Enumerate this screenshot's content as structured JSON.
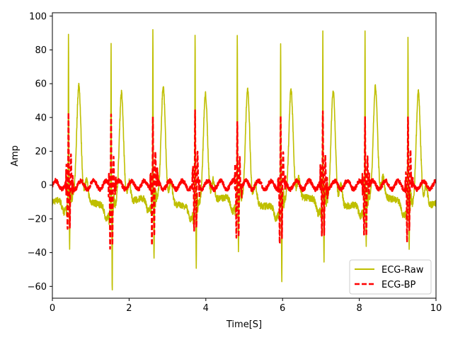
{
  "chart_data": {
    "type": "line",
    "xlabel": "Time[S]",
    "ylabel": "Amp",
    "xlim": [
      0,
      10
    ],
    "ylim": [
      -67,
      102
    ],
    "xticks": [
      0,
      2,
      4,
      6,
      8,
      10
    ],
    "yticks": [
      -60,
      -40,
      -20,
      0,
      20,
      40,
      60,
      80,
      100
    ],
    "ytick_labels": [
      "−60",
      "−40",
      "−20",
      "0",
      "20",
      "40",
      "60",
      "80",
      "100"
    ],
    "grid": false,
    "legend_position": "bottom-right",
    "beats": [
      {
        "r_time": 0.42,
        "raw_r": 87,
        "raw_s": -39,
        "raw_t": 57,
        "bp_r": 40,
        "bp_s": -30
      },
      {
        "r_time": 1.53,
        "raw_r": 86,
        "raw_s": -59,
        "raw_t": 56,
        "bp_r": 43,
        "bp_s": -38
      },
      {
        "r_time": 2.62,
        "raw_r": 90,
        "raw_s": -48,
        "raw_t": 57,
        "bp_r": 41,
        "bp_s": -35
      },
      {
        "r_time": 3.72,
        "raw_r": 93,
        "raw_s": -46,
        "raw_t": 54,
        "bp_r": 41,
        "bp_s": -30
      },
      {
        "r_time": 4.82,
        "raw_r": 89,
        "raw_s": -40,
        "raw_t": 57,
        "bp_r": 40,
        "bp_s": -32
      },
      {
        "r_time": 5.95,
        "raw_r": 87,
        "raw_s": -56,
        "raw_t": 55,
        "bp_r": 42,
        "bp_s": -36
      },
      {
        "r_time": 7.05,
        "raw_r": 92,
        "raw_s": -46,
        "raw_t": 58,
        "bp_r": 42,
        "bp_s": -33
      },
      {
        "r_time": 8.15,
        "raw_r": 93,
        "raw_s": -36,
        "raw_t": 56,
        "bp_r": 41,
        "bp_s": -30
      },
      {
        "r_time": 9.27,
        "raw_r": 90,
        "raw_s": -38,
        "raw_t": 57,
        "bp_r": 41,
        "bp_s": -33
      }
    ],
    "raw_baseline": -10,
    "series": [
      {
        "name": "ECG-Raw",
        "color": "#bfbf00",
        "style": "solid"
      },
      {
        "name": "ECG-BP",
        "color": "#ff0000",
        "style": "dashed"
      }
    ]
  }
}
